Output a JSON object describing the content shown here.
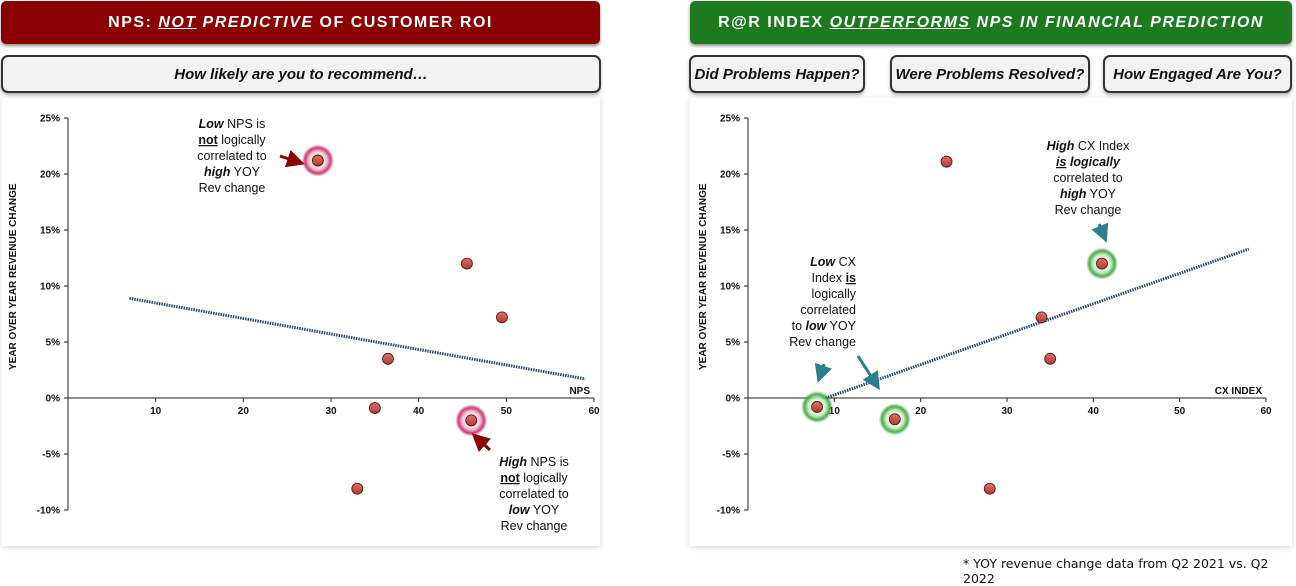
{
  "left": {
    "banner": {
      "part1": "NPS: ",
      "part2": "NOT",
      "part3": " PREDICTIVE",
      "part4": " OF CUSTOMER ROI",
      "color": "#8b0000"
    },
    "pill": "How likely are you to recommend…",
    "annotation_top": {
      "l1a": "Low",
      "l1b": " NPS is",
      "l2": "not",
      "l2b": " logically",
      "l3": "correlated to",
      "l4": "high",
      "l4b": " YOY",
      "l5": "Rev change"
    },
    "annotation_bottom": {
      "l1a": "High",
      "l1b": " NPS is",
      "l2": "not",
      "l2b": " logically",
      "l3": "correlated to",
      "l4": "low",
      "l4b": " YOY",
      "l5": "Rev change"
    }
  },
  "right": {
    "banner": {
      "part1": "R@R INDEX ",
      "part2": "OUTPERFORMS",
      "part3": " NPS IN FINANCIAL PREDICTION",
      "color": "#1e7a1e"
    },
    "pills": [
      "Did Problems Happen?",
      "Were Problems Resolved?",
      "How Engaged Are You?"
    ],
    "annotation_low": {
      "l1a": "Low",
      "l1b": " CX",
      "l2a": "Index ",
      "l2b": "is",
      "l3": "logically",
      "l4": "correlated",
      "l5a": "to ",
      "l5b": "low",
      "l5c": " YOY",
      "l6": "Rev change"
    },
    "annotation_high": {
      "l1a": "High",
      "l1b": " CX Index",
      "l2a": "is",
      "l2b": " logically",
      "l3": "correlated to",
      "l4a": "high",
      "l4b": " YOY",
      "l5": "Rev change"
    }
  },
  "footnote": "* YOY revenue change data from Q2 2021 vs. Q2 2022",
  "chart_data": [
    {
      "type": "scatter",
      "title": "",
      "xlabel": "NPS",
      "ylabel": "YEAR OVER YEAR REVENUE CHANGE",
      "xlim": [
        0,
        60
      ],
      "ylim": [
        -10,
        25
      ],
      "x_ticks": [
        "10",
        "20",
        "30",
        "40",
        "50",
        "60"
      ],
      "y_ticks": [
        "25%",
        "20%",
        "15%",
        "10%",
        "5%",
        "0%",
        "-5%",
        "-10%"
      ],
      "series": [
        {
          "points": [
            {
              "x": 28.5,
              "y": 21.2,
              "highlight": true
            },
            {
              "x": 45.5,
              "y": 12.0
            },
            {
              "x": 49.5,
              "y": 7.2
            },
            {
              "x": 36.5,
              "y": 3.5
            },
            {
              "x": 35.0,
              "y": -0.9
            },
            {
              "x": 46.0,
              "y": -2.0,
              "highlight": true
            },
            {
              "x": 33.0,
              "y": -8.1
            }
          ]
        }
      ],
      "trendline": {
        "x1": 7,
        "y1": 8.9,
        "x2": 59,
        "y2": 1.7
      },
      "highlight_color": "#c2185b",
      "grid": false
    },
    {
      "type": "scatter",
      "title": "",
      "xlabel": "CX INDEX",
      "ylabel": "YEAR OVER YEAR REVENUE CHANGE",
      "xlim": [
        0,
        60
      ],
      "ylim": [
        -10,
        25
      ],
      "x_ticks": [
        "10",
        "20",
        "30",
        "40",
        "50",
        "60"
      ],
      "y_ticks": [
        "25%",
        "20%",
        "15%",
        "10%",
        "5%",
        "0%",
        "-5%",
        "-10%"
      ],
      "series": [
        {
          "points": [
            {
              "x": 23.0,
              "y": 21.1
            },
            {
              "x": 41.0,
              "y": 12.0,
              "highlight": true
            },
            {
              "x": 34.0,
              "y": 7.2
            },
            {
              "x": 35.0,
              "y": 3.5
            },
            {
              "x": 8.0,
              "y": -0.8,
              "highlight": true
            },
            {
              "x": 17.0,
              "y": -1.9,
              "highlight": true
            },
            {
              "x": 28.0,
              "y": -8.1
            }
          ]
        }
      ],
      "trendline": {
        "x1": 9,
        "y1": 0.0,
        "x2": 58,
        "y2": 13.3
      },
      "highlight_color": "#2e9e2e",
      "grid": false
    }
  ]
}
